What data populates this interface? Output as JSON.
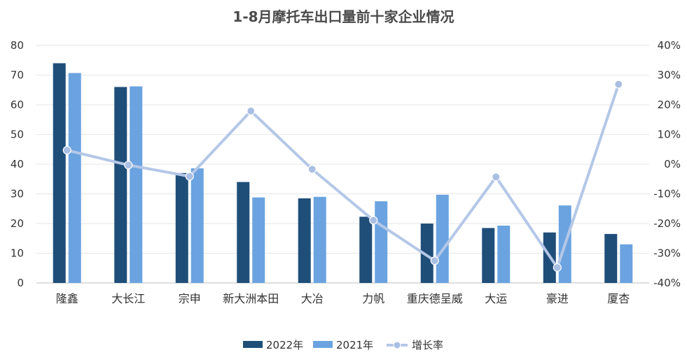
{
  "chart_data": {
    "type": "bar",
    "title": "1-8月摩托车出口量前十家企业情况",
    "categories": [
      "隆鑫",
      "大长江",
      "宗申",
      "新大洲本田",
      "大冶",
      "力帆",
      "重庆德呈威",
      "大运",
      "豪进",
      "厦杏"
    ],
    "series": [
      {
        "name": "2022年",
        "type": "bar",
        "axis": "left",
        "color": "#1f4e79",
        "values": [
          74,
          66,
          37,
          34,
          28.5,
          22.3,
          20,
          18.5,
          17,
          16.5
        ]
      },
      {
        "name": "2021年",
        "type": "bar",
        "axis": "left",
        "color": "#6aa3e0",
        "values": [
          70.7,
          66.2,
          38.6,
          28.8,
          29,
          27.5,
          29.7,
          19.3,
          26.1,
          13
        ]
      },
      {
        "name": "增长率",
        "type": "line",
        "axis": "right",
        "color": "#b4c7e7",
        "values": [
          4.7,
          -0.3,
          -4.1,
          17.9,
          -1.7,
          -18.9,
          -32.5,
          -4.3,
          -34.8,
          26.9
        ]
      }
    ],
    "y_left": {
      "min": 0,
      "max": 80,
      "ticks": [
        "0",
        "10",
        "20",
        "30",
        "40",
        "50",
        "60",
        "70",
        "80"
      ]
    },
    "y_right": {
      "min": -40,
      "max": 40,
      "ticks": [
        "-40%",
        "-30%",
        "-20%",
        "-10%",
        "0%",
        "10%",
        "20%",
        "30%",
        "40%"
      ]
    },
    "grid": true,
    "legend_position": "bottom"
  }
}
